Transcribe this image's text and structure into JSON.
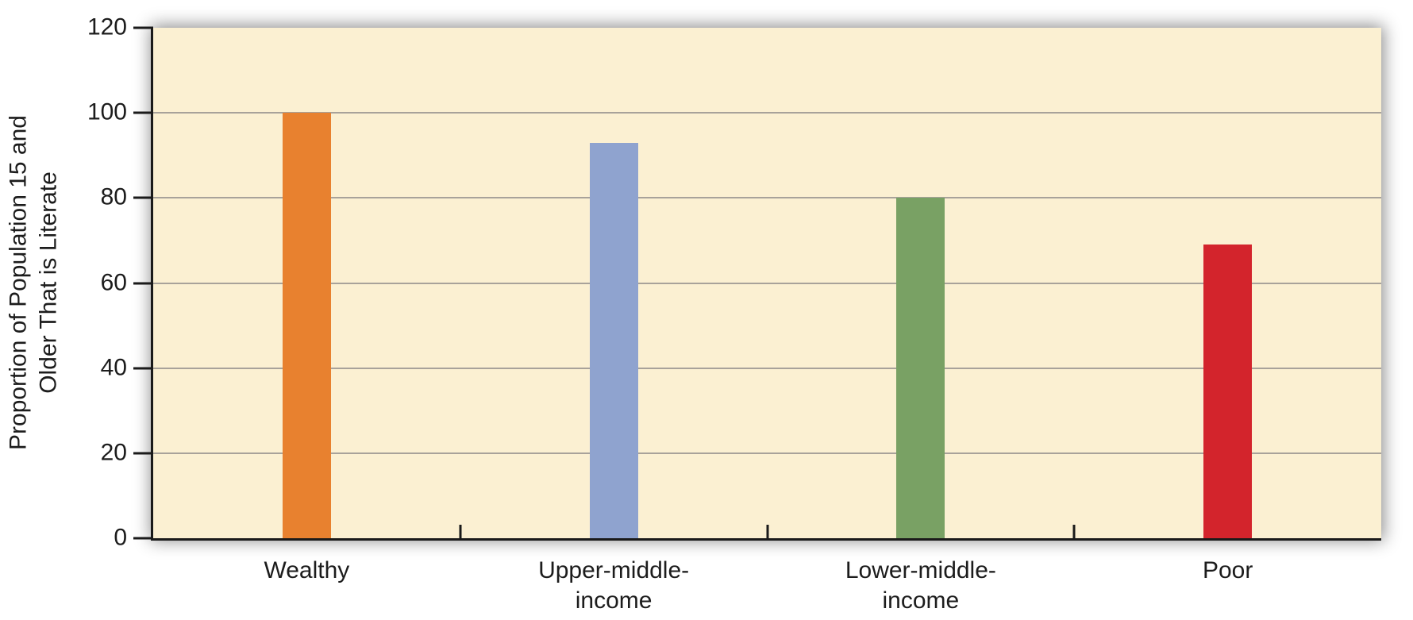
{
  "figure": {
    "y_axis_title": "Proportion of Population 15 and\nOlder That is Literate"
  },
  "chart_data": {
    "type": "bar",
    "categories": [
      "Wealthy",
      "Upper-middle-\nincome",
      "Lower-middle-\nincome",
      "Poor"
    ],
    "values": [
      100,
      93,
      80,
      69
    ],
    "bar_colors": [
      "#e8812f",
      "#8fa3cf",
      "#79a164",
      "#d3242c"
    ],
    "title": "",
    "xlabel": "",
    "ylabel": "Proportion of Population 15 and Older That is Literate",
    "ylim": [
      0,
      120
    ],
    "yticks": [
      0,
      20,
      40,
      60,
      80,
      100,
      120
    ],
    "grid": true,
    "legend": "none",
    "plot_bg_color": "#fbf0d2",
    "gridline_color": "#a8a29a",
    "axis_color": "#1a1a1a",
    "text_color": "#1c1c1c"
  }
}
